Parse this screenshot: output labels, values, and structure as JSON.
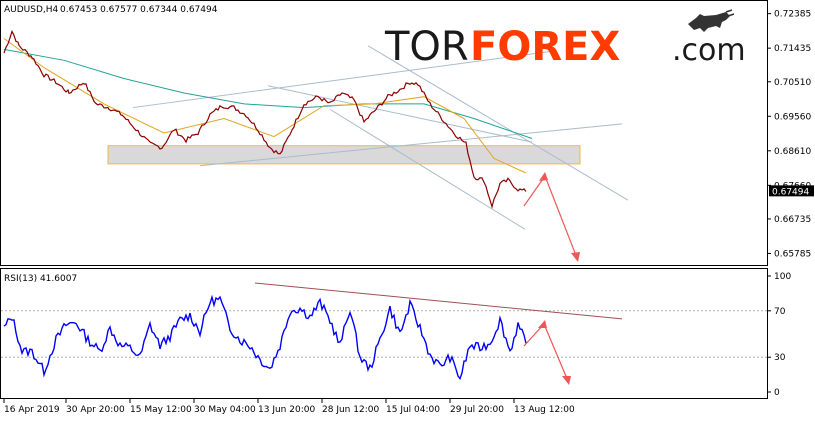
{
  "header": {
    "symbol": "AUDUSD,H4",
    "ohlc": "0.67453 0.67577 0.67344 0.67494"
  },
  "brand": {
    "tor": "TOR",
    "forex": "FOREX",
    "com": ".com"
  },
  "colors": {
    "price": "#8b0000",
    "ma_fast": "#e3a51a",
    "ma_slow": "#1ea597",
    "channel": "#a9bccb",
    "zone_fill": "#d9d9d9",
    "zone_border": "#f0b74a",
    "arrow": "#ef5757",
    "rsi": "#0000ff",
    "rsi_trend": "#a05050",
    "last_price_bg": "#000000"
  },
  "price_panel": {
    "last_price_label": "0.67494",
    "ticks": [
      "0.72385",
      "0.71435",
      "0.70510",
      "0.69560",
      "0.68610",
      "0.67660",
      "0.66735",
      "0.65785"
    ]
  },
  "rsi_panel": {
    "title": "RSI(13) 41.6007",
    "ticks": [
      "100",
      "70",
      "30",
      "0"
    ]
  },
  "time_axis": [
    "16 Apr 2019",
    "30 Apr 20:00",
    "15 May 12:00",
    "30 May 04:00",
    "13 Jun 20:00",
    "28 Jun 12:00",
    "15 Jul 04:00",
    "29 Jul 20:00",
    "13 Aug 12:00"
  ],
  "chart_data": [
    {
      "type": "line",
      "title": "AUDUSD,H4",
      "x": [
        "16 Apr 2019",
        "30 Apr 20:00",
        "15 May 12:00",
        "30 May 04:00",
        "13 Jun 20:00",
        "28 Jun 12:00",
        "15 Jul 04:00",
        "29 Jul 20:00",
        "13 Aug 12:00"
      ],
      "ylim": [
        0.6555,
        0.7265
      ],
      "series": [
        {
          "name": "",
          "values": [
            0.7165,
            0.7045,
            0.693,
            0.6955,
            0.688,
            0.7,
            0.704,
            0.679,
            0.675
          ]
        }
      ],
      "anchors": [
        [
          0,
          0.713
        ],
        [
          8,
          0.719
        ],
        [
          15,
          0.715
        ],
        [
          28,
          0.712
        ],
        [
          40,
          0.707
        ],
        [
          52,
          0.705
        ],
        [
          65,
          0.702
        ],
        [
          80,
          0.705
        ],
        [
          92,
          0.699
        ],
        [
          105,
          0.698
        ],
        [
          118,
          0.696
        ],
        [
          132,
          0.692
        ],
        [
          146,
          0.688
        ],
        [
          158,
          0.687
        ],
        [
          170,
          0.692
        ],
        [
          182,
          0.689
        ],
        [
          194,
          0.691
        ],
        [
          206,
          0.696
        ],
        [
          218,
          0.6985
        ],
        [
          230,
          0.698
        ],
        [
          242,
          0.696
        ],
        [
          254,
          0.692
        ],
        [
          266,
          0.687
        ],
        [
          276,
          0.685
        ],
        [
          288,
          0.692
        ],
        [
          300,
          0.699
        ],
        [
          314,
          0.701
        ],
        [
          326,
          0.699
        ],
        [
          338,
          0.702
        ],
        [
          350,
          0.7
        ],
        [
          360,
          0.694
        ],
        [
          372,
          0.6975
        ],
        [
          384,
          0.701
        ],
        [
          396,
          0.703
        ],
        [
          406,
          0.705
        ],
        [
          414,
          0.7045
        ],
        [
          426,
          0.699
        ],
        [
          438,
          0.695
        ],
        [
          450,
          0.691
        ],
        [
          462,
          0.688
        ],
        [
          470,
          0.679
        ],
        [
          480,
          0.678
        ],
        [
          488,
          0.671
        ],
        [
          496,
          0.677
        ],
        [
          504,
          0.678
        ],
        [
          514,
          0.6755
        ],
        [
          522,
          0.6749
        ]
      ],
      "ma_fast": [
        [
          0,
          0.717
        ],
        [
          40,
          0.709
        ],
        [
          100,
          0.699
        ],
        [
          160,
          0.691
        ],
        [
          220,
          0.695
        ],
        [
          270,
          0.69
        ],
        [
          320,
          0.6985
        ],
        [
          370,
          0.699
        ],
        [
          420,
          0.701
        ],
        [
          460,
          0.695
        ],
        [
          490,
          0.684
        ],
        [
          522,
          0.68
        ]
      ],
      "ma_slow": [
        [
          0,
          0.714
        ],
        [
          60,
          0.711
        ],
        [
          120,
          0.706
        ],
        [
          180,
          0.702
        ],
        [
          240,
          0.699
        ],
        [
          300,
          0.698
        ],
        [
          360,
          0.699
        ],
        [
          420,
          0.699
        ],
        [
          470,
          0.695
        ],
        [
          528,
          0.6895
        ]
      ]
    },
    {
      "type": "line",
      "title": "RSI(13) 41.6007",
      "ylim": [
        0,
        100
      ],
      "series": [
        {
          "name": "RSI(13)",
          "values": [
            62,
            45,
            52,
            60,
            40,
            68,
            58,
            48,
            41.6
          ]
        }
      ],
      "anchors": [
        [
          0,
          55
        ],
        [
          8,
          65
        ],
        [
          18,
          35
        ],
        [
          28,
          35
        ],
        [
          40,
          18
        ],
        [
          52,
          45
        ],
        [
          62,
          58
        ],
        [
          72,
          60
        ],
        [
          84,
          45
        ],
        [
          96,
          35
        ],
        [
          106,
          55
        ],
        [
          116,
          40
        ],
        [
          126,
          38
        ],
        [
          136,
          30
        ],
        [
          146,
          58
        ],
        [
          156,
          40
        ],
        [
          166,
          48
        ],
        [
          176,
          62
        ],
        [
          186,
          66
        ],
        [
          196,
          52
        ],
        [
          206,
          78
        ],
        [
          216,
          80
        ],
        [
          226,
          55
        ],
        [
          236,
          45
        ],
        [
          246,
          40
        ],
        [
          256,
          28
        ],
        [
          266,
          20
        ],
        [
          276,
          40
        ],
        [
          286,
          70
        ],
        [
          296,
          72
        ],
        [
          306,
          65
        ],
        [
          316,
          77
        ],
        [
          326,
          62
        ],
        [
          336,
          40
        ],
        [
          346,
          72
        ],
        [
          356,
          30
        ],
        [
          366,
          20
        ],
        [
          376,
          45
        ],
        [
          386,
          72
        ],
        [
          396,
          50
        ],
        [
          406,
          75
        ],
        [
          416,
          55
        ],
        [
          426,
          32
        ],
        [
          436,
          22
        ],
        [
          446,
          30
        ],
        [
          456,
          12
        ],
        [
          466,
          40
        ],
        [
          476,
          38
        ],
        [
          486,
          42
        ],
        [
          496,
          62
        ],
        [
          506,
          35
        ],
        [
          514,
          58
        ],
        [
          522,
          42
        ]
      ],
      "levels": [
        70,
        30
      ]
    }
  ]
}
